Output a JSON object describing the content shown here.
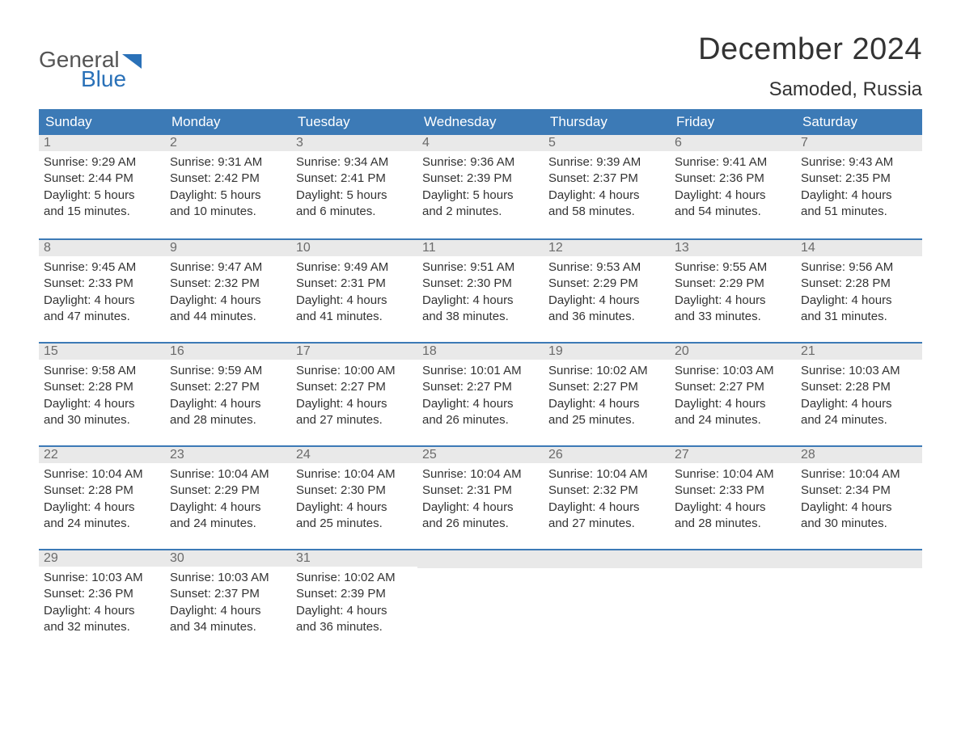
{
  "brand": {
    "part1": "General",
    "part2": "Blue",
    "flag_color": "#2a71b8"
  },
  "title": "December 2024",
  "location": "Samoded, Russia",
  "colors": {
    "header_bg": "#3c7ab6",
    "header_text": "#ffffff",
    "daynum_bg": "#e9e9e9",
    "daynum_text": "#6b6b6b",
    "row_border": "#3c7ab6",
    "body_text": "#333333",
    "background": "#ffffff"
  },
  "day_names": [
    "Sunday",
    "Monday",
    "Tuesday",
    "Wednesday",
    "Thursday",
    "Friday",
    "Saturday"
  ],
  "weeks": [
    [
      {
        "n": "1",
        "sunrise": "Sunrise: 9:29 AM",
        "sunset": "Sunset: 2:44 PM",
        "day1": "Daylight: 5 hours",
        "day2": "and 15 minutes."
      },
      {
        "n": "2",
        "sunrise": "Sunrise: 9:31 AM",
        "sunset": "Sunset: 2:42 PM",
        "day1": "Daylight: 5 hours",
        "day2": "and 10 minutes."
      },
      {
        "n": "3",
        "sunrise": "Sunrise: 9:34 AM",
        "sunset": "Sunset: 2:41 PM",
        "day1": "Daylight: 5 hours",
        "day2": "and 6 minutes."
      },
      {
        "n": "4",
        "sunrise": "Sunrise: 9:36 AM",
        "sunset": "Sunset: 2:39 PM",
        "day1": "Daylight: 5 hours",
        "day2": "and 2 minutes."
      },
      {
        "n": "5",
        "sunrise": "Sunrise: 9:39 AM",
        "sunset": "Sunset: 2:37 PM",
        "day1": "Daylight: 4 hours",
        "day2": "and 58 minutes."
      },
      {
        "n": "6",
        "sunrise": "Sunrise: 9:41 AM",
        "sunset": "Sunset: 2:36 PM",
        "day1": "Daylight: 4 hours",
        "day2": "and 54 minutes."
      },
      {
        "n": "7",
        "sunrise": "Sunrise: 9:43 AM",
        "sunset": "Sunset: 2:35 PM",
        "day1": "Daylight: 4 hours",
        "day2": "and 51 minutes."
      }
    ],
    [
      {
        "n": "8",
        "sunrise": "Sunrise: 9:45 AM",
        "sunset": "Sunset: 2:33 PM",
        "day1": "Daylight: 4 hours",
        "day2": "and 47 minutes."
      },
      {
        "n": "9",
        "sunrise": "Sunrise: 9:47 AM",
        "sunset": "Sunset: 2:32 PM",
        "day1": "Daylight: 4 hours",
        "day2": "and 44 minutes."
      },
      {
        "n": "10",
        "sunrise": "Sunrise: 9:49 AM",
        "sunset": "Sunset: 2:31 PM",
        "day1": "Daylight: 4 hours",
        "day2": "and 41 minutes."
      },
      {
        "n": "11",
        "sunrise": "Sunrise: 9:51 AM",
        "sunset": "Sunset: 2:30 PM",
        "day1": "Daylight: 4 hours",
        "day2": "and 38 minutes."
      },
      {
        "n": "12",
        "sunrise": "Sunrise: 9:53 AM",
        "sunset": "Sunset: 2:29 PM",
        "day1": "Daylight: 4 hours",
        "day2": "and 36 minutes."
      },
      {
        "n": "13",
        "sunrise": "Sunrise: 9:55 AM",
        "sunset": "Sunset: 2:29 PM",
        "day1": "Daylight: 4 hours",
        "day2": "and 33 minutes."
      },
      {
        "n": "14",
        "sunrise": "Sunrise: 9:56 AM",
        "sunset": "Sunset: 2:28 PM",
        "day1": "Daylight: 4 hours",
        "day2": "and 31 minutes."
      }
    ],
    [
      {
        "n": "15",
        "sunrise": "Sunrise: 9:58 AM",
        "sunset": "Sunset: 2:28 PM",
        "day1": "Daylight: 4 hours",
        "day2": "and 30 minutes."
      },
      {
        "n": "16",
        "sunrise": "Sunrise: 9:59 AM",
        "sunset": "Sunset: 2:27 PM",
        "day1": "Daylight: 4 hours",
        "day2": "and 28 minutes."
      },
      {
        "n": "17",
        "sunrise": "Sunrise: 10:00 AM",
        "sunset": "Sunset: 2:27 PM",
        "day1": "Daylight: 4 hours",
        "day2": "and 27 minutes."
      },
      {
        "n": "18",
        "sunrise": "Sunrise: 10:01 AM",
        "sunset": "Sunset: 2:27 PM",
        "day1": "Daylight: 4 hours",
        "day2": "and 26 minutes."
      },
      {
        "n": "19",
        "sunrise": "Sunrise: 10:02 AM",
        "sunset": "Sunset: 2:27 PM",
        "day1": "Daylight: 4 hours",
        "day2": "and 25 minutes."
      },
      {
        "n": "20",
        "sunrise": "Sunrise: 10:03 AM",
        "sunset": "Sunset: 2:27 PM",
        "day1": "Daylight: 4 hours",
        "day2": "and 24 minutes."
      },
      {
        "n": "21",
        "sunrise": "Sunrise: 10:03 AM",
        "sunset": "Sunset: 2:28 PM",
        "day1": "Daylight: 4 hours",
        "day2": "and 24 minutes."
      }
    ],
    [
      {
        "n": "22",
        "sunrise": "Sunrise: 10:04 AM",
        "sunset": "Sunset: 2:28 PM",
        "day1": "Daylight: 4 hours",
        "day2": "and 24 minutes."
      },
      {
        "n": "23",
        "sunrise": "Sunrise: 10:04 AM",
        "sunset": "Sunset: 2:29 PM",
        "day1": "Daylight: 4 hours",
        "day2": "and 24 minutes."
      },
      {
        "n": "24",
        "sunrise": "Sunrise: 10:04 AM",
        "sunset": "Sunset: 2:30 PM",
        "day1": "Daylight: 4 hours",
        "day2": "and 25 minutes."
      },
      {
        "n": "25",
        "sunrise": "Sunrise: 10:04 AM",
        "sunset": "Sunset: 2:31 PM",
        "day1": "Daylight: 4 hours",
        "day2": "and 26 minutes."
      },
      {
        "n": "26",
        "sunrise": "Sunrise: 10:04 AM",
        "sunset": "Sunset: 2:32 PM",
        "day1": "Daylight: 4 hours",
        "day2": "and 27 minutes."
      },
      {
        "n": "27",
        "sunrise": "Sunrise: 10:04 AM",
        "sunset": "Sunset: 2:33 PM",
        "day1": "Daylight: 4 hours",
        "day2": "and 28 minutes."
      },
      {
        "n": "28",
        "sunrise": "Sunrise: 10:04 AM",
        "sunset": "Sunset: 2:34 PM",
        "day1": "Daylight: 4 hours",
        "day2": "and 30 minutes."
      }
    ],
    [
      {
        "n": "29",
        "sunrise": "Sunrise: 10:03 AM",
        "sunset": "Sunset: 2:36 PM",
        "day1": "Daylight: 4 hours",
        "day2": "and 32 minutes."
      },
      {
        "n": "30",
        "sunrise": "Sunrise: 10:03 AM",
        "sunset": "Sunset: 2:37 PM",
        "day1": "Daylight: 4 hours",
        "day2": "and 34 minutes."
      },
      {
        "n": "31",
        "sunrise": "Sunrise: 10:02 AM",
        "sunset": "Sunset: 2:39 PM",
        "day1": "Daylight: 4 hours",
        "day2": "and 36 minutes."
      },
      null,
      null,
      null,
      null
    ]
  ]
}
